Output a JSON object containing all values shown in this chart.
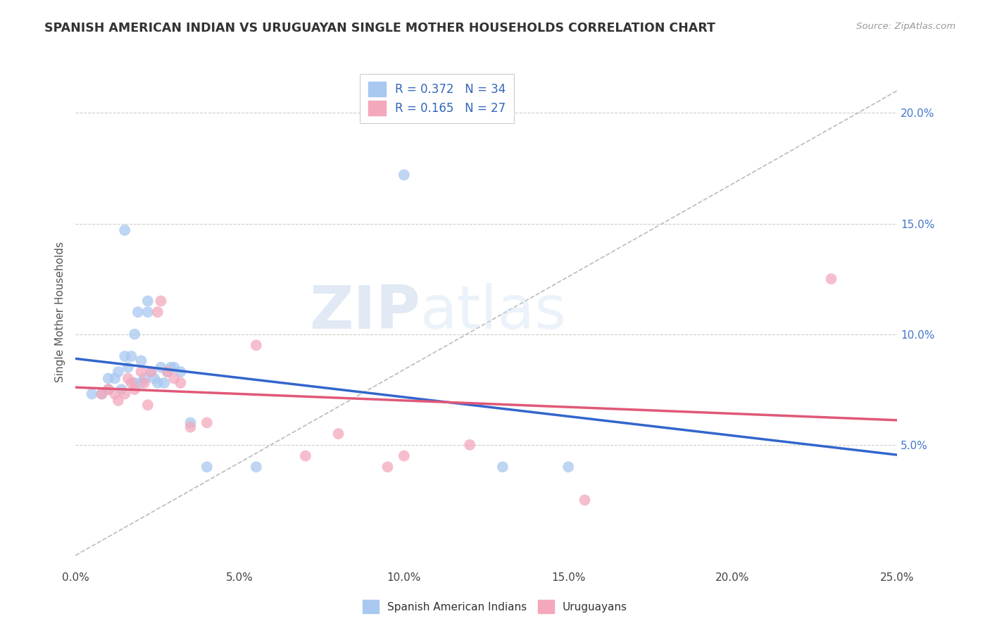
{
  "title": "SPANISH AMERICAN INDIAN VS URUGUAYAN SINGLE MOTHER HOUSEHOLDS CORRELATION CHART",
  "source": "Source: ZipAtlas.com",
  "xlabel": "",
  "ylabel": "Single Mother Households",
  "xlim": [
    0.0,
    0.25
  ],
  "ylim": [
    -0.005,
    0.225
  ],
  "yticks": [
    0.05,
    0.1,
    0.15,
    0.2
  ],
  "ytick_labels": [
    "5.0%",
    "10.0%",
    "15.0%",
    "20.0%"
  ],
  "xticks": [
    0.0,
    0.05,
    0.1,
    0.15,
    0.2,
    0.25
  ],
  "xtick_labels": [
    "0.0%",
    "5.0%",
    "10.0%",
    "15.0%",
    "20.0%",
    "25.0%"
  ],
  "blue_R": 0.372,
  "blue_N": 34,
  "pink_R": 0.165,
  "pink_N": 27,
  "blue_color": "#A8C8F0",
  "pink_color": "#F4A8BC",
  "blue_line_color": "#3366CC",
  "pink_line_color": "#E05878",
  "blue_scatter_x": [
    0.005,
    0.008,
    0.01,
    0.01,
    0.012,
    0.013,
    0.014,
    0.015,
    0.015,
    0.016,
    0.017,
    0.018,
    0.018,
    0.019,
    0.02,
    0.02,
    0.021,
    0.022,
    0.022,
    0.023,
    0.024,
    0.025,
    0.026,
    0.027,
    0.028,
    0.029,
    0.03,
    0.032,
    0.035,
    0.04,
    0.055,
    0.1,
    0.13,
    0.15
  ],
  "blue_scatter_y": [
    0.073,
    0.073,
    0.08,
    0.075,
    0.08,
    0.083,
    0.075,
    0.147,
    0.09,
    0.085,
    0.09,
    0.078,
    0.1,
    0.11,
    0.088,
    0.078,
    0.08,
    0.115,
    0.11,
    0.083,
    0.08,
    0.078,
    0.085,
    0.078,
    0.083,
    0.085,
    0.085,
    0.083,
    0.06,
    0.04,
    0.04,
    0.172,
    0.04,
    0.04
  ],
  "pink_scatter_x": [
    0.008,
    0.01,
    0.012,
    0.013,
    0.015,
    0.016,
    0.017,
    0.018,
    0.02,
    0.021,
    0.022,
    0.023,
    0.025,
    0.026,
    0.028,
    0.03,
    0.032,
    0.035,
    0.04,
    0.055,
    0.07,
    0.08,
    0.095,
    0.1,
    0.12,
    0.155,
    0.23
  ],
  "pink_scatter_y": [
    0.073,
    0.075,
    0.073,
    0.07,
    0.073,
    0.08,
    0.078,
    0.075,
    0.083,
    0.078,
    0.068,
    0.083,
    0.11,
    0.115,
    0.083,
    0.08,
    0.078,
    0.058,
    0.06,
    0.095,
    0.045,
    0.055,
    0.04,
    0.045,
    0.05,
    0.025,
    0.125
  ],
  "blue_label": "Spanish American Indians",
  "pink_label": "Uruguayans",
  "watermark_zip": "ZIP",
  "watermark_atlas": "atlas",
  "background_color": "#FFFFFF",
  "grid_color": "#CCCCCC",
  "ref_line_x": [
    0.0,
    0.25
  ],
  "ref_line_y": [
    0.0,
    0.21
  ]
}
